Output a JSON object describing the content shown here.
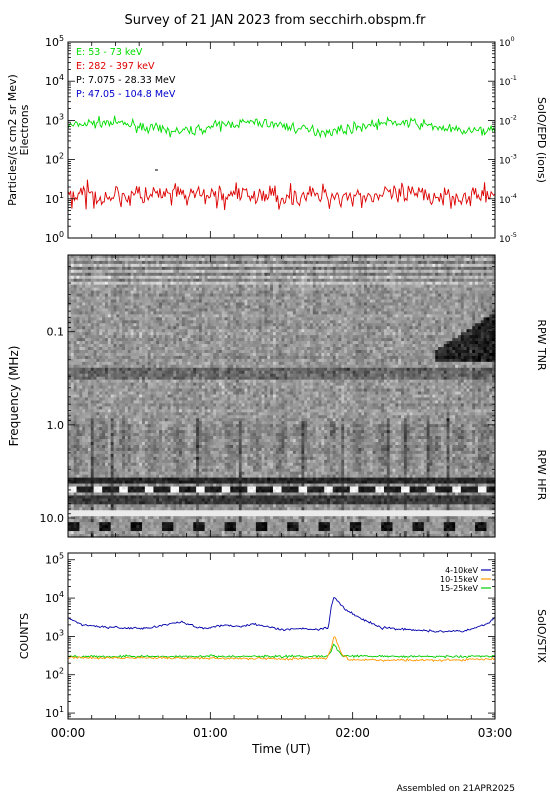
{
  "title": "Survey of 21 JAN 2023 from secchirh.obspm.fr",
  "footer": "Assembled on 21APR2025",
  "chart_data": [
    {
      "type": "line",
      "panel": "SoIO/EPD",
      "ylabel_left": "Particles/(s cm2 sr Mev)",
      "ylabel_left2": "Electrons",
      "ylabel_right": "SoIO/EPD (ions)",
      "y_scale": "log",
      "ylim": [
        1,
        100000
      ],
      "yticks_left": [
        {
          "exp": "0",
          "v": 1
        },
        {
          "exp": "1",
          "v": 10
        },
        {
          "exp": "2",
          "v": 100
        },
        {
          "exp": "3",
          "v": 1000
        },
        {
          "exp": "4",
          "v": 10000
        },
        {
          "exp": "5",
          "v": 100000
        }
      ],
      "yticks_right": [
        {
          "exp": "-5",
          "v": 1
        },
        {
          "exp": "-4",
          "v": 10
        },
        {
          "exp": "-3",
          "v": 100
        },
        {
          "exp": "-2",
          "v": 1000
        },
        {
          "exp": "-1",
          "v": 10000
        },
        {
          "exp": "0",
          "v": 100000
        }
      ],
      "legend": [
        {
          "label": "E: 53 - 73 keV",
          "color": "#00dd00"
        },
        {
          "label": "E: 282 - 397 keV",
          "color": "#dd0000"
        },
        {
          "label": "P: 7.075 - 28.33 MeV",
          "color": "#000000"
        },
        {
          "label": "P: 47.05 - 104.8 MeV",
          "color": "#0000cc"
        }
      ],
      "series": [
        {
          "name": "E: 53 - 73 keV",
          "color": "#00dd00",
          "level": 700,
          "spread": 0.12
        },
        {
          "name": "E: 282 - 397 keV",
          "color": "#dd0000",
          "level": 12,
          "spread": 0.28
        }
      ]
    },
    {
      "type": "heatmap",
      "panel": "RPW",
      "ylabel": "Frequency (MHz)",
      "right_labels": [
        "RPW TNR",
        "RPW HFR"
      ],
      "y_scale": "log",
      "ylim": [
        0.015,
        16
      ],
      "yticks": [
        {
          "label": "0.1",
          "v": 0.1
        },
        {
          "label": "1.0",
          "v": 1.0
        },
        {
          "label": "10.0",
          "v": 10.0
        }
      ],
      "xlim_hours": [
        0,
        3
      ]
    },
    {
      "type": "line",
      "panel": "SoIO/STIX",
      "ylabel": "COUNTS",
      "ylabel_right": "SoIO/STIX",
      "y_scale": "log",
      "ylim": [
        7,
        150000
      ],
      "yticks": [
        {
          "exp": "1",
          "v": 10
        },
        {
          "exp": "2",
          "v": 100
        },
        {
          "exp": "3",
          "v": 1000
        },
        {
          "exp": "4",
          "v": 10000
        },
        {
          "exp": "5",
          "v": 100000
        }
      ],
      "xlabel": "Time (UT)",
      "xticks": [
        {
          "label": "00:00",
          "h": 0
        },
        {
          "label": "01:00",
          "h": 1
        },
        {
          "label": "02:00",
          "h": 2
        },
        {
          "label": "03:00",
          "h": 3
        }
      ],
      "legend_items": [
        {
          "label": "4-10keV",
          "color": "#0000aa"
        },
        {
          "label": "10-15keV",
          "color": "#ff9900"
        },
        {
          "label": "15-25keV",
          "color": "#00cc00"
        }
      ],
      "series": [
        {
          "name": "4-10keV",
          "color": "#0000aa",
          "points": [
            [
              0,
              3000
            ],
            [
              0.1,
              2000
            ],
            [
              0.3,
              1700
            ],
            [
              0.55,
              1600
            ],
            [
              0.8,
              2400
            ],
            [
              0.9,
              1700
            ],
            [
              1.0,
              1700
            ],
            [
              1.1,
              2000
            ],
            [
              1.2,
              1800
            ],
            [
              1.3,
              2100
            ],
            [
              1.5,
              1500
            ],
            [
              1.6,
              1600
            ],
            [
              1.75,
              1500
            ],
            [
              1.83,
              1700
            ],
            [
              1.85,
              6000
            ],
            [
              1.87,
              11000
            ],
            [
              1.9,
              8000
            ],
            [
              1.95,
              5000
            ],
            [
              2.05,
              3000
            ],
            [
              2.2,
              1700
            ],
            [
              2.4,
              1500
            ],
            [
              2.6,
              1350
            ],
            [
              2.8,
              1400
            ],
            [
              2.95,
              2200
            ],
            [
              3.0,
              3000
            ]
          ]
        },
        {
          "name": "10-15keV",
          "color": "#ff9900",
          "points": [
            [
              0,
              280
            ],
            [
              0.5,
              270
            ],
            [
              1.0,
              270
            ],
            [
              1.5,
              260
            ],
            [
              1.82,
              270
            ],
            [
              1.85,
              500
            ],
            [
              1.87,
              1100
            ],
            [
              1.89,
              700
            ],
            [
              1.92,
              350
            ],
            [
              1.97,
              250
            ],
            [
              2.3,
              240
            ],
            [
              2.7,
              240
            ],
            [
              3.0,
              260
            ]
          ]
        },
        {
          "name": "15-25keV",
          "color": "#00cc00",
          "points": [
            [
              0,
              300
            ],
            [
              0.5,
              300
            ],
            [
              1.0,
              300
            ],
            [
              1.5,
              300
            ],
            [
              1.82,
              300
            ],
            [
              1.85,
              420
            ],
            [
              1.87,
              700
            ],
            [
              1.89,
              450
            ],
            [
              1.93,
              310
            ],
            [
              2.3,
              300
            ],
            [
              2.7,
              300
            ],
            [
              3.0,
              300
            ]
          ]
        }
      ]
    }
  ]
}
